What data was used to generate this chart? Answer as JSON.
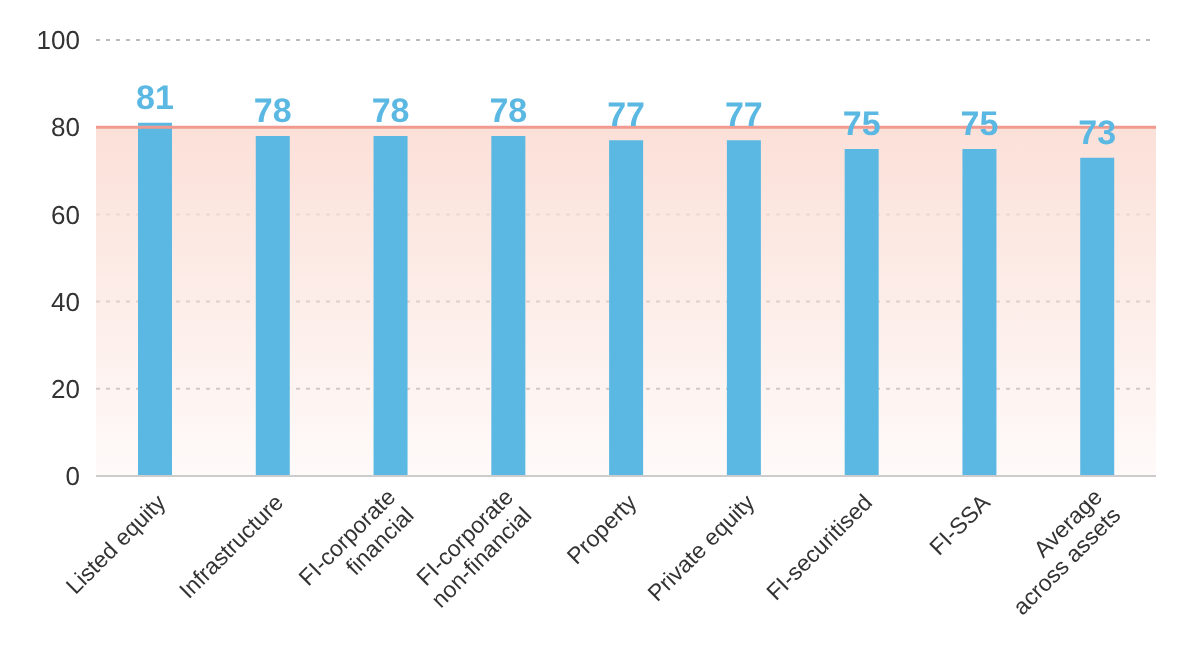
{
  "chart_data": {
    "type": "bar",
    "categories": [
      "Listed equity",
      "Infrastructure",
      "FI-corporate financial",
      "FI-corporate non-financial",
      "Property",
      "Private equity",
      "FI-securitised",
      "FI-SSA",
      "Average across assets"
    ],
    "values": [
      81,
      78,
      78,
      78,
      77,
      77,
      75,
      75,
      73
    ],
    "color": "#5bb8e2",
    "ylim": [
      0,
      100
    ],
    "yticks": [
      0,
      20,
      40,
      60,
      80,
      100
    ],
    "grid": "y",
    "data_labels": true,
    "bands": [
      {
        "axis": "y",
        "from": 0,
        "to": 80,
        "color": "#fbe0d8"
      }
    ],
    "ref_lines": [
      {
        "axis": "y",
        "value": 80,
        "color": "#f19a8f"
      }
    ]
  }
}
